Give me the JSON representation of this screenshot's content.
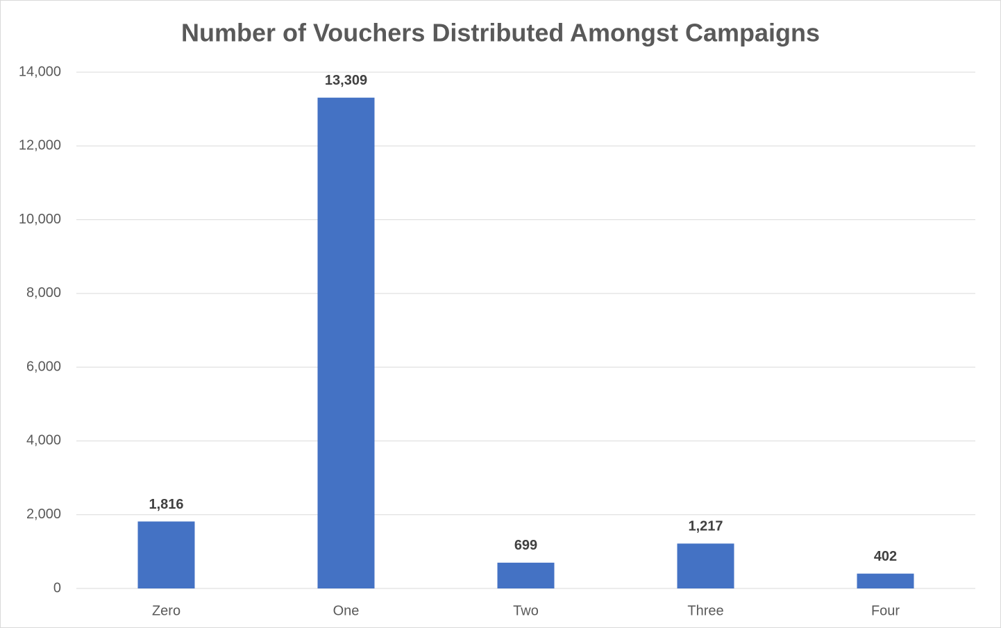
{
  "chart_data": {
    "type": "bar",
    "title": "Number of Vouchers Distributed Amongst Campaigns",
    "categories": [
      "Zero",
      "One",
      "Two",
      "Three",
      "Four"
    ],
    "values": [
      1816,
      13309,
      699,
      1217,
      402
    ],
    "value_labels": [
      "1,816",
      "13,309",
      "699",
      "1,217",
      "402"
    ],
    "color": "#4472c4",
    "ylim": [
      0,
      14000
    ],
    "yticks": [
      0,
      {
        "value": 2000,
        "label": "2,000"
      },
      {
        "value": 4000,
        "label": "4,000"
      },
      {
        "value": 6000,
        "label": "6,000"
      },
      {
        "value": 8000,
        "label": "8,000"
      },
      {
        "value": 10000,
        "label": "10,000"
      },
      {
        "value": 12000,
        "label": "12,000"
      },
      {
        "value": 14000,
        "label": "14,000"
      }
    ],
    "grid": true
  }
}
